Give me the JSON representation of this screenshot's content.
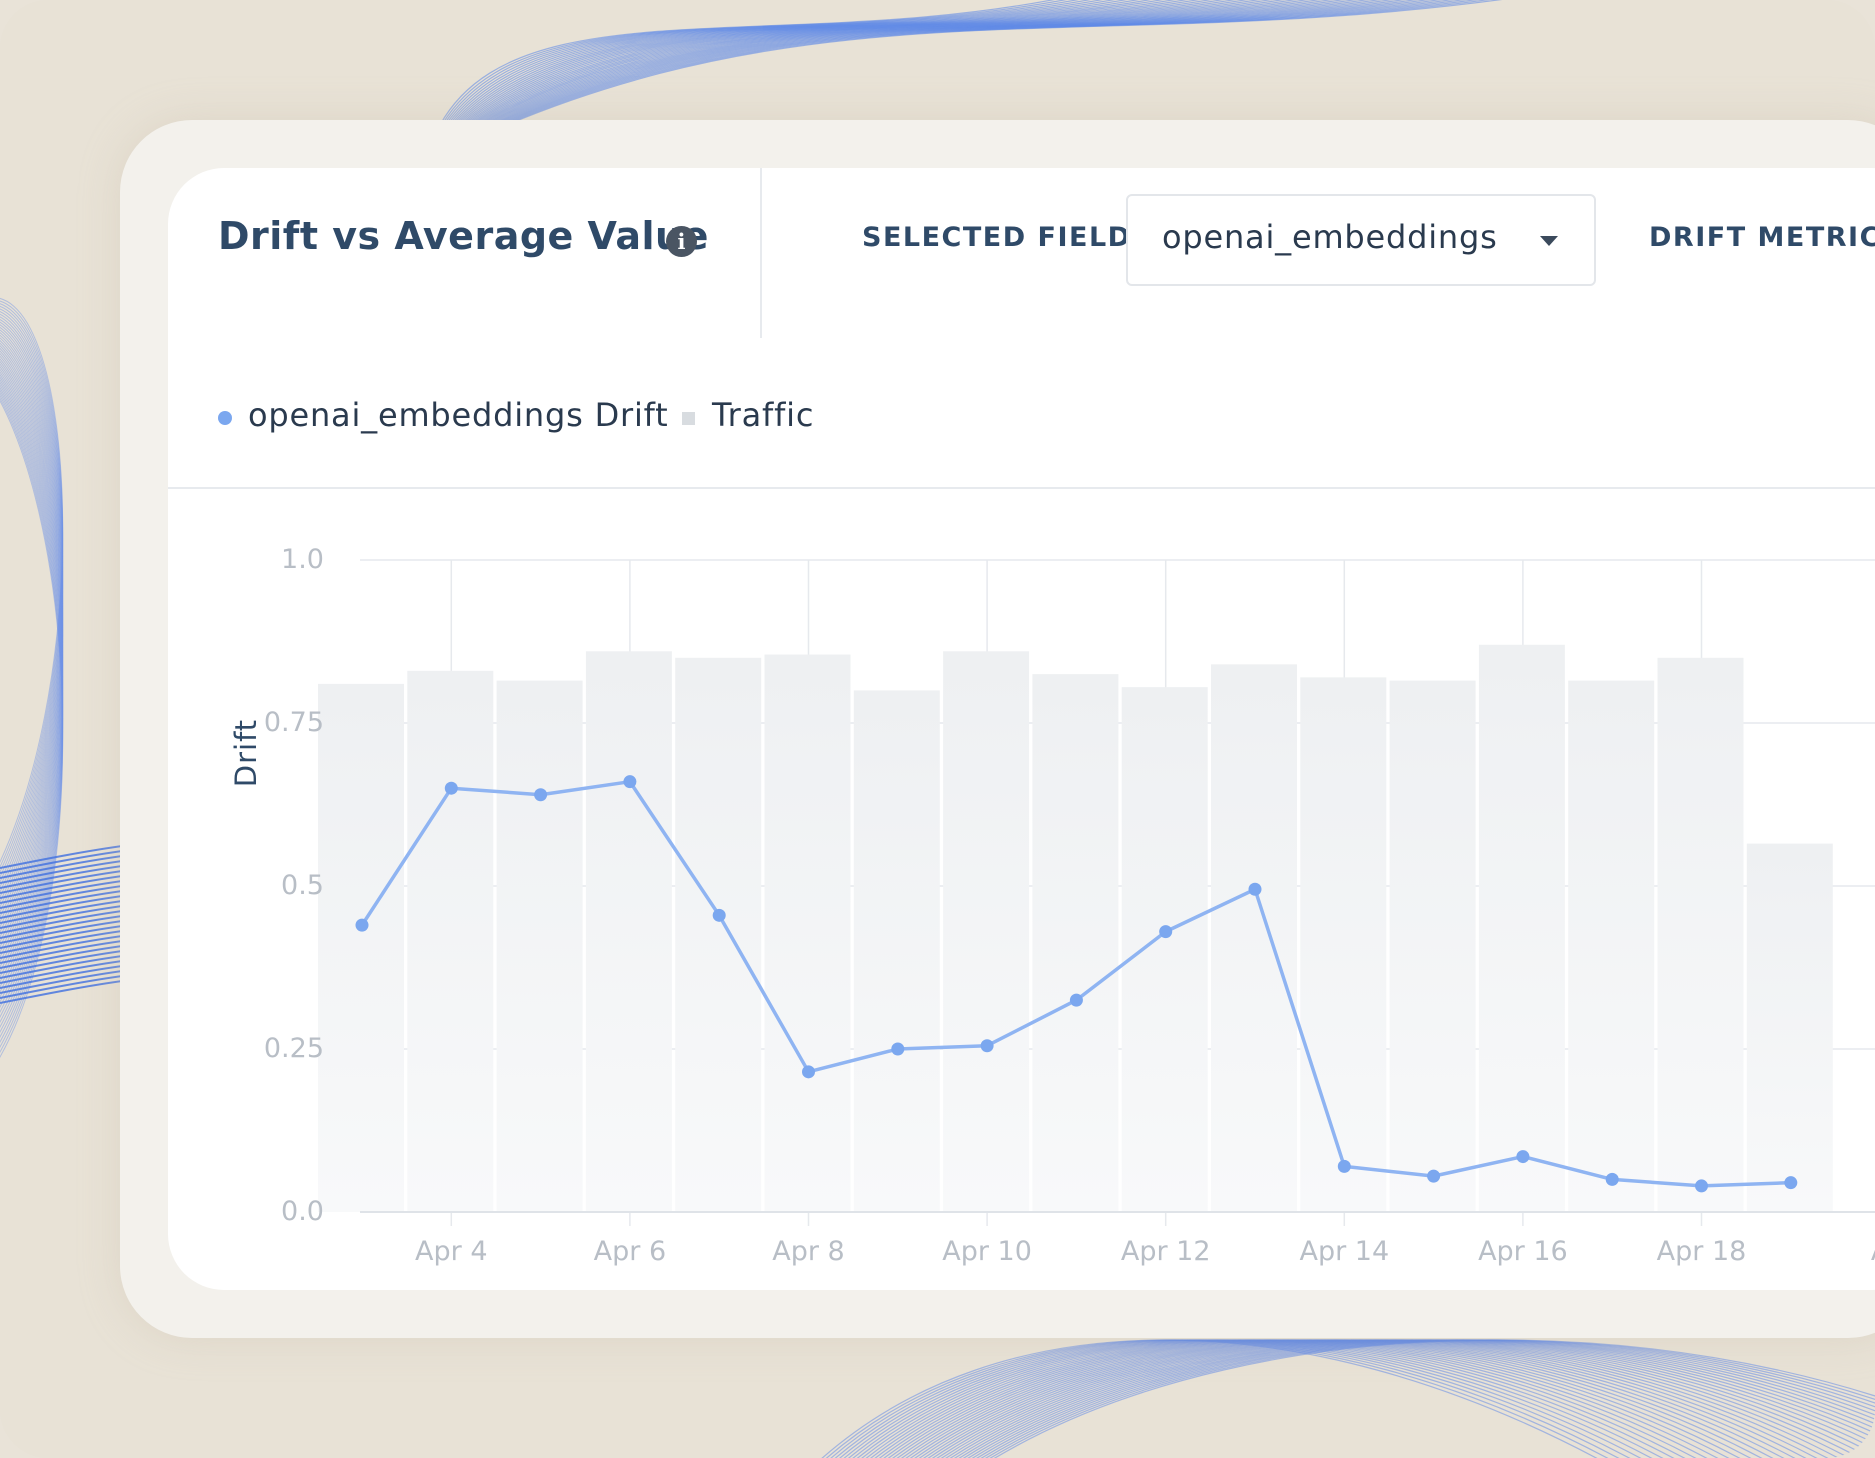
{
  "header": {
    "title": "Drift vs Average Value",
    "info_icon": "info-icon",
    "selected_field_label": "SELECTED FIELD",
    "selected_field_value": "openai_embeddings",
    "drift_metric_label": "DRIFT METRIC"
  },
  "legend": {
    "drift_label": "openai_embeddings Drift",
    "traffic_label": "Traffic"
  },
  "colors": {
    "line": "#8fb4f2",
    "point": "#7ba7ef",
    "bars": "#eef0f2",
    "title": "#2f4a68"
  },
  "chart_data": {
    "type": "line",
    "title": "Drift vs Average Value",
    "ylabel": "Drift",
    "xlabel": "",
    "ylim": [
      0,
      1
    ],
    "yticks": [
      "0.0",
      "0.25",
      "0.5",
      "0.75",
      "1.0"
    ],
    "ytick_values": [
      0,
      0.25,
      0.5,
      0.75,
      1.0
    ],
    "xtick_labels": [
      "Apr 4",
      "Apr 6",
      "Apr 8",
      "Apr 10",
      "Apr 12",
      "Apr 14",
      "Apr 16",
      "Apr 18",
      "A"
    ],
    "x": [
      "Apr 3",
      "Apr 4",
      "Apr 5",
      "Apr 6",
      "Apr 7",
      "Apr 8",
      "Apr 9",
      "Apr 10",
      "Apr 11",
      "Apr 12",
      "Apr 13",
      "Apr 14",
      "Apr 15",
      "Apr 16",
      "Apr 17",
      "Apr 18",
      "Apr 19"
    ],
    "series": [
      {
        "name": "openai_embeddings Drift",
        "type": "line",
        "values": [
          0.44,
          0.65,
          0.64,
          0.66,
          0.455,
          0.215,
          0.25,
          0.255,
          0.325,
          0.43,
          0.495,
          0.07,
          0.055,
          0.085,
          0.05,
          0.04,
          0.045
        ]
      },
      {
        "name": "Traffic",
        "type": "bar",
        "values": [
          0.81,
          0.83,
          0.815,
          0.86,
          0.85,
          0.855,
          0.8,
          0.86,
          0.825,
          0.805,
          0.84,
          0.82,
          0.815,
          0.87,
          0.815,
          0.85,
          0.565
        ]
      }
    ],
    "grid": true,
    "legend_position": "top-left"
  }
}
